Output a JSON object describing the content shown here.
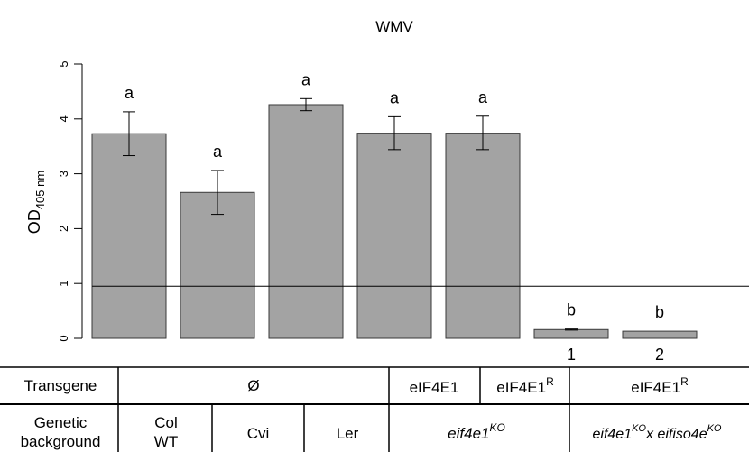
{
  "chart_data": {
    "type": "bar",
    "title": "WMV",
    "ylabel_main": "OD",
    "ylabel_sub": "405 nm",
    "ylim": [
      0,
      5
    ],
    "yticks": [
      0,
      1,
      2,
      3,
      4,
      5
    ],
    "threshold": 0.95,
    "bars": [
      {
        "value": 3.73,
        "err_low": 3.33,
        "err_high": 4.13,
        "letter": "a",
        "num": ""
      },
      {
        "value": 2.66,
        "err_low": 2.26,
        "err_high": 3.06,
        "letter": "a",
        "num": ""
      },
      {
        "value": 4.26,
        "err_low": 4.15,
        "err_high": 4.37,
        "letter": "a",
        "num": ""
      },
      {
        "value": 3.74,
        "err_low": 3.44,
        "err_high": 4.04,
        "letter": "a",
        "num": ""
      },
      {
        "value": 3.74,
        "err_low": 3.44,
        "err_high": 4.05,
        "letter": "a",
        "num": ""
      },
      {
        "value": 0.16,
        "err_low": 0.15,
        "err_high": 0.17,
        "letter": "b",
        "num": "1"
      },
      {
        "value": 0.13,
        "err_low": 0.13,
        "err_high": 0.13,
        "letter": "b",
        "num": "2"
      }
    ],
    "colors": {
      "bar_fill": "#a3a3a3",
      "bar_stroke": "#3a3a3a",
      "line": "#000000"
    }
  },
  "table": {
    "row1_label": "Transgene",
    "row2_label_line1": "Genetic",
    "row2_label_line2": "background",
    "transgene_null": "Ø",
    "transgene_eif4e1": "eIF4E1",
    "transgene_eif4e1r_base": "eIF4E1",
    "transgene_eif4e1r_sup": "R",
    "bg_col_line1": "Col",
    "bg_col_line2": "WT",
    "bg_cvi": "Cvi",
    "bg_ler": "Ler",
    "bg_ko_base": "eif4e1",
    "bg_ko_sup": "KO",
    "bg_cross_a": "eif4e1",
    "bg_cross_a_sup": "KO",
    "bg_cross_x": "x eifiso4e",
    "bg_cross_b_sup": "KO"
  }
}
